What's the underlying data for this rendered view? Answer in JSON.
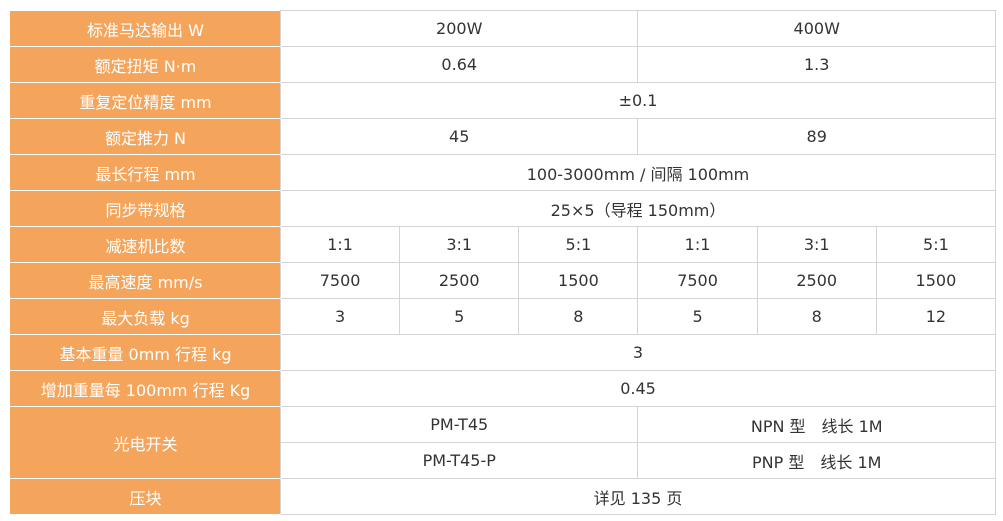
{
  "table": {
    "rows": [
      {
        "label": "标准马达输出 W",
        "lines": [
          [
            "200W",
            "400W"
          ]
        ]
      },
      {
        "label": "额定扭矩 N·m",
        "lines": [
          [
            "0.64",
            "1.3"
          ]
        ]
      },
      {
        "label": "重复定位精度 mm",
        "lines": [
          [
            "±0.1"
          ]
        ]
      },
      {
        "label": "额定推力 N",
        "lines": [
          [
            "45",
            "89"
          ]
        ]
      },
      {
        "label": "最长行程 mm",
        "lines": [
          [
            "100-3000mm / 间隔 100mm"
          ]
        ]
      },
      {
        "label": "同步带规格",
        "lines": [
          [
            "25×5（导程 150mm）"
          ]
        ]
      },
      {
        "label": "减速机比数",
        "lines": [
          [
            "1:1",
            "3:1",
            "5:1",
            "1:1",
            "3:1",
            "5:1"
          ]
        ]
      },
      {
        "label": "最高速度 mm/s",
        "lines": [
          [
            "7500",
            "2500",
            "1500",
            "7500",
            "2500",
            "1500"
          ]
        ]
      },
      {
        "label": "最大负载 kg",
        "lines": [
          [
            "3",
            "5",
            "8",
            "5",
            "8",
            "12"
          ]
        ]
      },
      {
        "label": "基本重量 0mm 行程 kg",
        "lines": [
          [
            "3"
          ]
        ]
      },
      {
        "label": "增加重量每 100mm 行程 Kg",
        "lines": [
          [
            "0.45"
          ]
        ]
      },
      {
        "label": "光电开关",
        "lines": [
          [
            "PM-T45",
            "NPN 型　线长 1M"
          ],
          [
            "PM-T45-P",
            "PNP 型　线长 1M"
          ]
        ]
      },
      {
        "label": "压块",
        "lines": [
          [
            "详见 135 页"
          ]
        ]
      }
    ]
  }
}
